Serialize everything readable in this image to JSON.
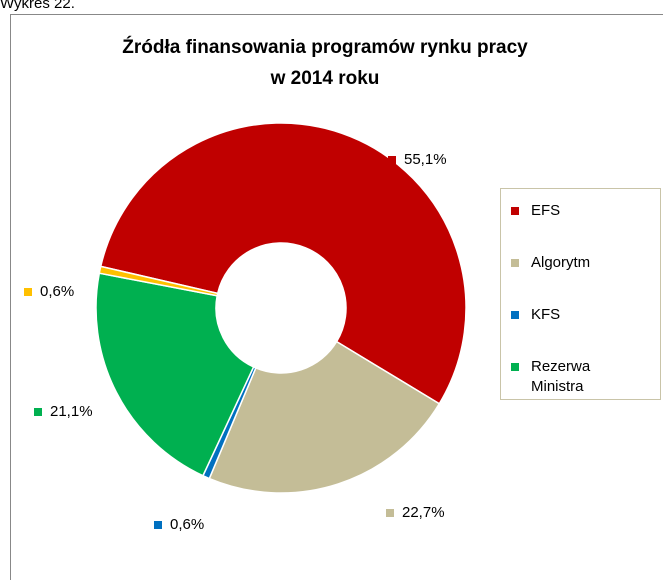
{
  "caption": "Wykres 22.",
  "chart_data": {
    "type": "donut",
    "title": [
      "Źródła finansowania programów rynku pracy",
      "w 2014 roku"
    ],
    "categories": [
      "EFS",
      "Algorytm",
      "KFS",
      "Rezerwa Ministra",
      null
    ],
    "values": [
      55.1,
      22.7,
      0.6,
      21.1,
      0.6
    ],
    "value_labels": [
      "55,1%",
      "22,7%",
      "0,6%",
      "21,1%",
      "0,6%"
    ],
    "colors": [
      "#C00000",
      "#C4BD97",
      "#0070C0",
      "#00B050",
      "#FFC000"
    ],
    "legend": "right"
  }
}
